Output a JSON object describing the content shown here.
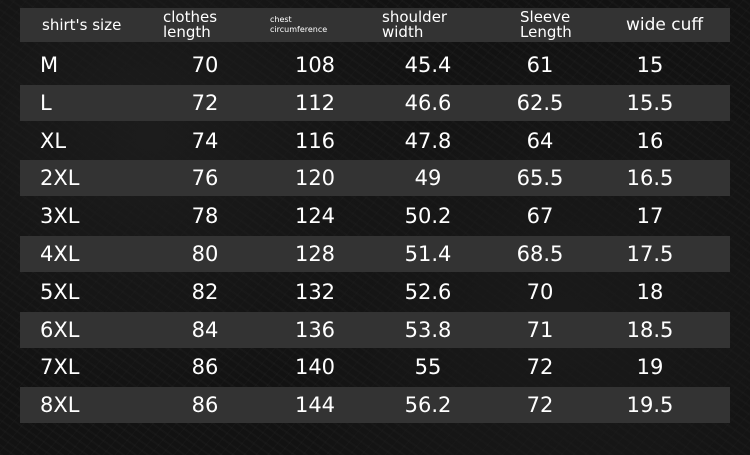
{
  "headers": [
    {
      "lines": [
        "shirt's size"
      ]
    },
    {
      "lines": [
        "clothes",
        "length"
      ]
    },
    {
      "lines": [
        "chest",
        "circumference"
      ]
    },
    {
      "lines": [
        "shoulder",
        "width"
      ]
    },
    {
      "lines": [
        "Sleeve",
        "Length"
      ]
    },
    {
      "lines": [
        "wide cuff"
      ]
    }
  ],
  "rows": [
    [
      "M",
      "70",
      "108",
      "45.4",
      "61",
      "15"
    ],
    [
      "L",
      "72",
      "112",
      "46.6",
      "62.5",
      "15.5"
    ],
    [
      "XL",
      "74",
      "116",
      "47.8",
      "64",
      "16"
    ],
    [
      "2XL",
      "76",
      "120",
      "49",
      "65.5",
      "16.5"
    ],
    [
      "3XL",
      "78",
      "124",
      "50.2",
      "67",
      "17"
    ],
    [
      "4XL",
      "80",
      "128",
      "51.4",
      "68.5",
      "17.5"
    ],
    [
      "5XL",
      "82",
      "132",
      "52.6",
      "70",
      "18"
    ],
    [
      "6XL",
      "84",
      "136",
      "53.8",
      "71",
      "18.5"
    ],
    [
      "7XL",
      "86",
      "140",
      "55",
      "72",
      "19"
    ],
    [
      "8XL",
      "86",
      "144",
      "56.2",
      "72",
      "19.5"
    ]
  ],
  "colors": {
    "background": "#121212",
    "band": "#333333",
    "text": "#ffffff"
  }
}
